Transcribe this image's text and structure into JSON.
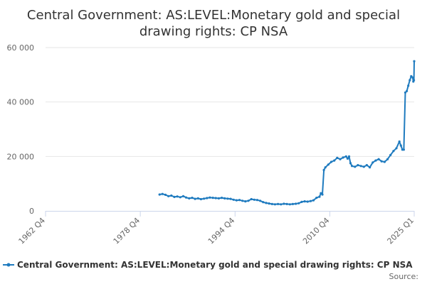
{
  "colors": {
    "series": "#1f7bbf",
    "grid": "#e6e6e6",
    "axis": "#ccd6eb"
  },
  "chart_data": {
    "type": "line",
    "title": "Central Government: AS:LEVEL:Monetary gold and special drawing rights: CP NSA",
    "title_lines": [
      "Central Government: AS:LEVEL:Monetary gold and special",
      "drawing rights: CP NSA"
    ],
    "x_tick_labels": [
      "1962 Q4",
      "1978 Q4",
      "1994 Q4",
      "2010 Q4",
      "2025 Q1"
    ],
    "x_ticks": [
      1962.75,
      1978.75,
      1994.75,
      2010.75,
      2025.0
    ],
    "x_range": [
      1962.75,
      2025.0
    ],
    "y_tick_labels": [
      "0",
      "20 000",
      "40 000",
      "60 000"
    ],
    "y_ticks": [
      0,
      20000,
      40000,
      60000
    ],
    "ylim": [
      0,
      60000
    ],
    "grid": true,
    "legend_position": "bottom",
    "source_label": "Source:",
    "series": [
      {
        "name": "Central Government: AS:LEVEL:Monetary gold and special drawing rights: CP NSA",
        "points": [
          [
            1982.0,
            6000
          ],
          [
            1982.5,
            6200
          ],
          [
            1983.0,
            5900
          ],
          [
            1983.5,
            5400
          ],
          [
            1984.0,
            5600
          ],
          [
            1984.5,
            5100
          ],
          [
            1985.0,
            5300
          ],
          [
            1985.5,
            5000
          ],
          [
            1986.0,
            5400
          ],
          [
            1986.5,
            4900
          ],
          [
            1987.0,
            4600
          ],
          [
            1987.5,
            4800
          ],
          [
            1988.0,
            4400
          ],
          [
            1988.5,
            4600
          ],
          [
            1989.0,
            4300
          ],
          [
            1989.5,
            4500
          ],
          [
            1990.0,
            4700
          ],
          [
            1990.5,
            4900
          ],
          [
            1991.0,
            4800
          ],
          [
            1991.5,
            4700
          ],
          [
            1992.0,
            4600
          ],
          [
            1992.5,
            4800
          ],
          [
            1993.0,
            4600
          ],
          [
            1993.5,
            4500
          ],
          [
            1994.0,
            4400
          ],
          [
            1994.5,
            4100
          ],
          [
            1995.0,
            3900
          ],
          [
            1995.5,
            4000
          ],
          [
            1996.0,
            3700
          ],
          [
            1996.5,
            3500
          ],
          [
            1997.0,
            3700
          ],
          [
            1997.5,
            4300
          ],
          [
            1998.0,
            4100
          ],
          [
            1998.5,
            4000
          ],
          [
            1999.0,
            3700
          ],
          [
            1999.5,
            3200
          ],
          [
            2000.0,
            2900
          ],
          [
            2000.5,
            2700
          ],
          [
            2001.0,
            2500
          ],
          [
            2001.5,
            2400
          ],
          [
            2002.0,
            2500
          ],
          [
            2002.5,
            2400
          ],
          [
            2003.0,
            2600
          ],
          [
            2003.5,
            2500
          ],
          [
            2004.0,
            2400
          ],
          [
            2004.5,
            2500
          ],
          [
            2005.0,
            2600
          ],
          [
            2005.5,
            2800
          ],
          [
            2006.0,
            3300
          ],
          [
            2006.5,
            3500
          ],
          [
            2007.0,
            3400
          ],
          [
            2007.5,
            3600
          ],
          [
            2008.0,
            3900
          ],
          [
            2008.5,
            4800
          ],
          [
            2009.0,
            5200
          ],
          [
            2009.25,
            6500
          ],
          [
            2009.5,
            6000
          ],
          [
            2009.75,
            15000
          ],
          [
            2010.0,
            16000
          ],
          [
            2010.5,
            17000
          ],
          [
            2011.0,
            18000
          ],
          [
            2011.5,
            18500
          ],
          [
            2012.0,
            19500
          ],
          [
            2012.5,
            19000
          ],
          [
            2013.0,
            19600
          ],
          [
            2013.5,
            20000
          ],
          [
            2013.75,
            19200
          ],
          [
            2014.0,
            20000
          ],
          [
            2014.25,
            17500
          ],
          [
            2014.5,
            16500
          ],
          [
            2015.0,
            16200
          ],
          [
            2015.5,
            16800
          ],
          [
            2016.0,
            16500
          ],
          [
            2016.5,
            16200
          ],
          [
            2017.0,
            16800
          ],
          [
            2017.5,
            16000
          ],
          [
            2018.0,
            17800
          ],
          [
            2018.5,
            18500
          ],
          [
            2019.0,
            19000
          ],
          [
            2019.5,
            18200
          ],
          [
            2020.0,
            18000
          ],
          [
            2020.5,
            19000
          ],
          [
            2021.0,
            20500
          ],
          [
            2021.5,
            22000
          ],
          [
            2022.0,
            23000
          ],
          [
            2022.5,
            25500
          ],
          [
            2022.75,
            24000
          ],
          [
            2023.0,
            22500
          ],
          [
            2023.25,
            22500
          ],
          [
            2023.5,
            43500
          ],
          [
            2023.75,
            44000
          ],
          [
            2024.0,
            46000
          ],
          [
            2024.25,
            48000
          ],
          [
            2024.5,
            49500
          ],
          [
            2024.75,
            49000
          ],
          [
            2024.85,
            47500
          ],
          [
            2024.95,
            48000
          ],
          [
            2025.0,
            55000
          ]
        ]
      }
    ]
  }
}
